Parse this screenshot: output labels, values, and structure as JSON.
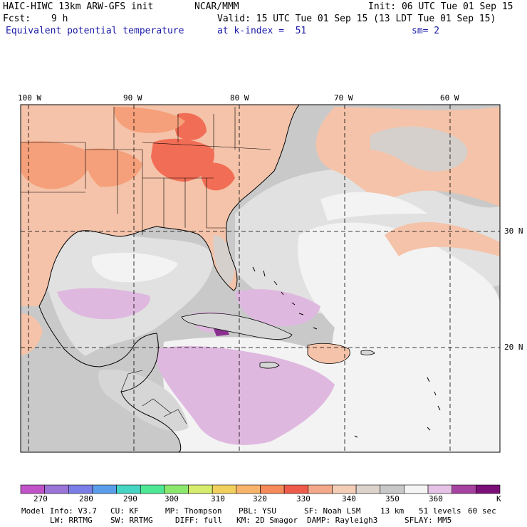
{
  "header": {
    "model": "HAIC-HIWC 13km ARW-GFS init",
    "center": "NCAR/MMM",
    "init": "Init: 06 UTC Tue 01 Sep 15",
    "fcst_label": "Fcst:",
    "fcst_value": "9 h",
    "valid": "Valid: 15 UTC Tue 01 Sep 15 (13 LDT Tue 01 Sep 15)",
    "field": "Equivalent potential temperature",
    "level": "at k-index =  51",
    "smoothing": "sm= 2"
  },
  "map": {
    "lon_labels": [
      "100 W",
      "90 W",
      "80 W",
      "70 W",
      "60 W"
    ],
    "lat_labels": [
      "30 N",
      "20 N"
    ],
    "colors": {
      "ocean_gray": "#c9c9c9",
      "light_gray": "#e1e1e1",
      "white_band": "#f3f3f3",
      "land_salmon": "#f4c3a9",
      "warm_orange": "#f5a07a",
      "hot_red": "#f26d55",
      "lavender": "#dfb8e0",
      "purple": "#8a2f8f",
      "grid_line": "#000000"
    }
  },
  "colorbar": {
    "tick_labels": [
      "270",
      "280",
      "290",
      "300",
      "310",
      "320",
      "330",
      "340",
      "350",
      "360",
      "K"
    ],
    "colors": [
      "#c053c8",
      "#9a74d6",
      "#7b7ee6",
      "#5a9ee9",
      "#46d4c4",
      "#4ee895",
      "#8ce86d",
      "#d6ec6d",
      "#f2d05e",
      "#f7b46a",
      "#f58a5a",
      "#ee5b4b",
      "#f4a88a",
      "#f3cdb6",
      "#dcd3cd",
      "#c8c8c8",
      "#f4f4f4",
      "#e6c2e6",
      "#a6429f",
      "#7a0f78"
    ]
  },
  "footer": {
    "line1": [
      "Model Info: V3.7",
      "CU: KF",
      "MP: Thompson",
      "PBL: YSU",
      "SF: Noah LSM",
      "13 km",
      "51 levels",
      "60 sec"
    ],
    "line2": [
      "LW: RRTMG",
      "SW: RRTMG",
      "DIFF: full",
      "KM: 2D Smagor",
      "DAMP: Rayleigh3",
      "SFLAY: MM5"
    ]
  }
}
